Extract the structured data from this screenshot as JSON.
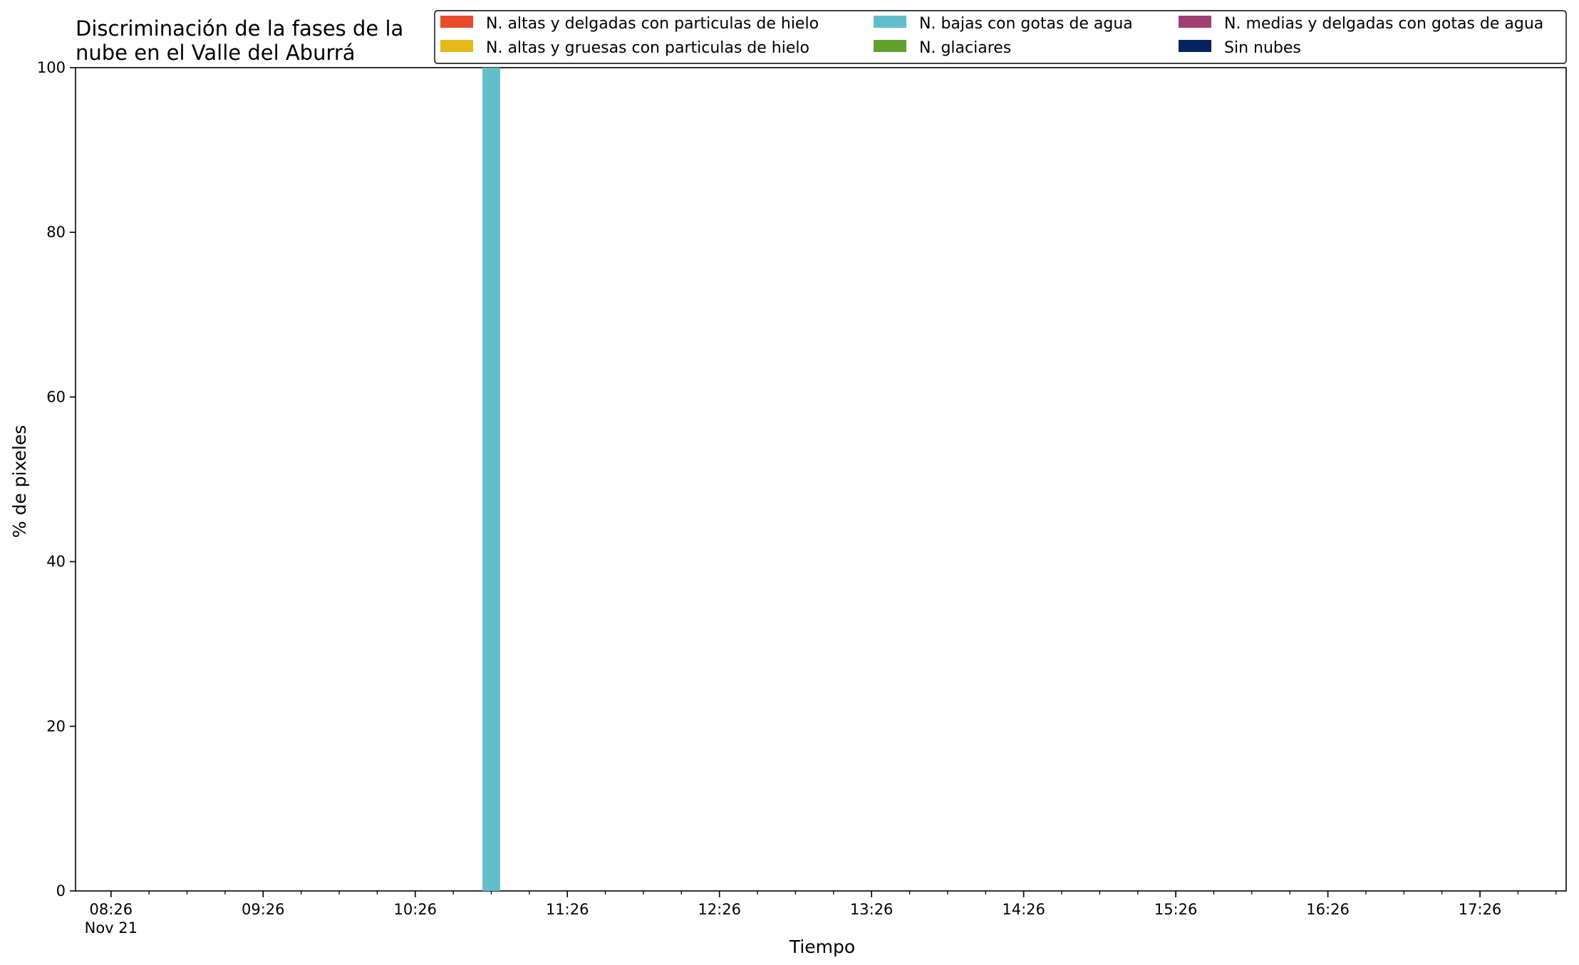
{
  "chart_data": {
    "type": "bar",
    "stacked": true,
    "title_lines": [
      "Discriminación de la fases de la",
      "nube en el Valle del Aburrá"
    ],
    "xlabel": "Tiempo",
    "ylabel": "% de pixeles",
    "ylim": [
      0,
      100
    ],
    "xlim": [
      "08:12",
      "18:00"
    ],
    "yticks": [
      0,
      20,
      40,
      60,
      80,
      100
    ],
    "xticks": [
      {
        "label": "08:26",
        "sublabel": "Nov 21",
        "time": "08:26"
      },
      {
        "label": "09:26",
        "sublabel": "",
        "time": "09:26"
      },
      {
        "label": "10:26",
        "sublabel": "",
        "time": "10:26"
      },
      {
        "label": "11:26",
        "sublabel": "",
        "time": "11:26"
      },
      {
        "label": "12:26",
        "sublabel": "",
        "time": "12:26"
      },
      {
        "label": "13:26",
        "sublabel": "",
        "time": "13:26"
      },
      {
        "label": "14:26",
        "sublabel": "",
        "time": "14:26"
      },
      {
        "label": "15:26",
        "sublabel": "",
        "time": "15:26"
      },
      {
        "label": "16:26",
        "sublabel": "",
        "time": "16:26"
      },
      {
        "label": "17:26",
        "sublabel": "",
        "time": "17:26"
      }
    ],
    "minor_tick_interval_minutes": 15,
    "grid": false,
    "legend_position": "top-right",
    "bar_time_width_minutes": 7,
    "series": [
      {
        "name": "N. altas y delgadas con particulas de hielo",
        "color": "#e84a2c",
        "points": []
      },
      {
        "name": "N. altas y gruesas con particulas de hielo",
        "color": "#e5b91a",
        "points": []
      },
      {
        "name": "N. bajas con gotas de agua",
        "color": "#63bcc9",
        "points": [
          {
            "time": "10:56",
            "value": 100
          }
        ]
      },
      {
        "name": "N. glaciares",
        "color": "#5fa02e",
        "points": []
      },
      {
        "name": "N. medias y delgadas con gotas de agua",
        "color": "#a13e72",
        "points": []
      },
      {
        "name": "Sin nubes",
        "color": "#04225e",
        "points": []
      }
    ]
  }
}
